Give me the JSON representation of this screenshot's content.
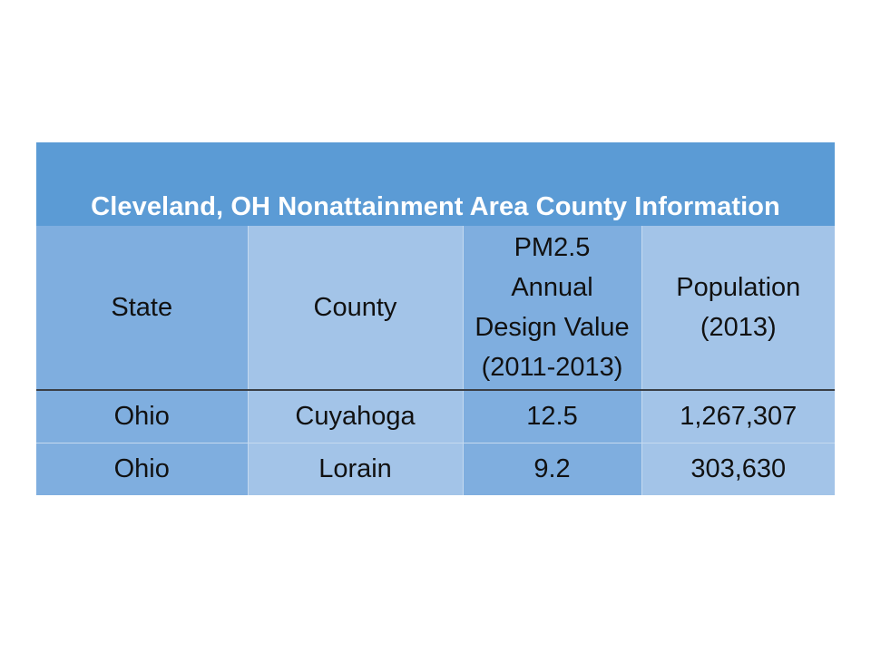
{
  "table": {
    "title": "Cleveland, OH Nonattainment Area County Information",
    "headers": [
      {
        "lines": [
          "State"
        ]
      },
      {
        "lines": [
          "County"
        ]
      },
      {
        "lines": [
          "PM2.5",
          "Annual",
          "Design Value",
          "(2011-2013)"
        ]
      },
      {
        "lines": [
          "Population",
          "(2013)"
        ]
      }
    ],
    "rows": [
      [
        "Ohio",
        "Cuyahoga",
        "12.5",
        "1,267,307"
      ],
      [
        "Ohio",
        "Lorain",
        "9.2",
        "303,630"
      ]
    ]
  },
  "colors": {
    "title_bg": "#5b9bd5",
    "col_dark": "#7faedf",
    "col_light": "#a3c4e8",
    "title_text": "#ffffff"
  }
}
